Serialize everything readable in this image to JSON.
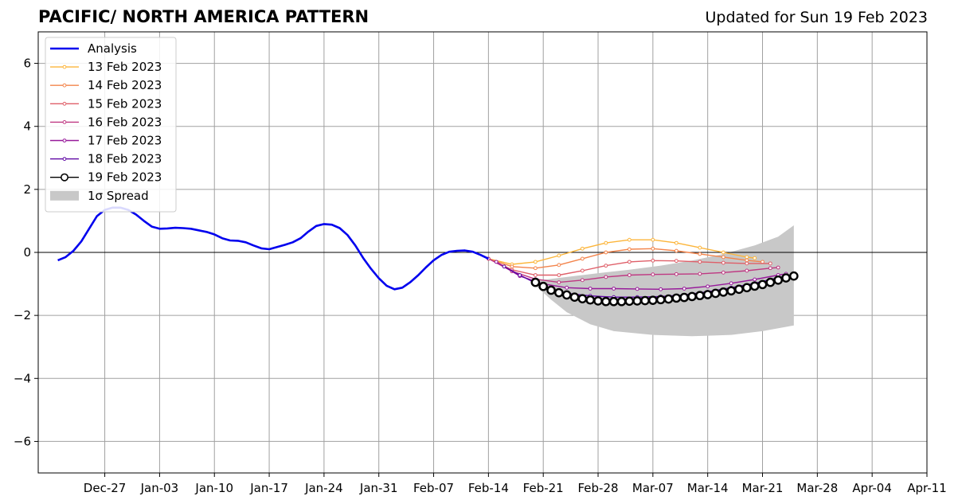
{
  "header": {
    "title": "PACIFIC/ NORTH AMERICA PATTERN",
    "updated": "Updated for Sun 19 Feb 2023"
  },
  "chart_data": {
    "type": "line",
    "title": "PACIFIC/ NORTH AMERICA PATTERN",
    "subtitle": "Updated for Sun 19 Feb 2023",
    "xlabel": "",
    "ylabel": "",
    "x_unit": "days since Dec 27 2022",
    "xlim": [
      -8.5,
      105
    ],
    "ylim": [
      -7,
      7
    ],
    "x_ticks": [
      {
        "x": 0,
        "label": "Dec-27"
      },
      {
        "x": 7,
        "label": "Jan-03"
      },
      {
        "x": 14,
        "label": "Jan-10"
      },
      {
        "x": 21,
        "label": "Jan-17"
      },
      {
        "x": 28,
        "label": "Jan-24"
      },
      {
        "x": 35,
        "label": "Jan-31"
      },
      {
        "x": 42,
        "label": "Feb-07"
      },
      {
        "x": 49,
        "label": "Feb-14"
      },
      {
        "x": 56,
        "label": "Feb-21"
      },
      {
        "x": 63,
        "label": "Feb-28"
      },
      {
        "x": 70,
        "label": "Mar-07"
      },
      {
        "x": 77,
        "label": "Mar-14"
      },
      {
        "x": 84,
        "label": "Mar-21"
      },
      {
        "x": 91,
        "label": "Mar-28"
      },
      {
        "x": 98,
        "label": "Apr-04"
      },
      {
        "x": 105,
        "label": "Apr-11"
      }
    ],
    "y_ticks": [
      {
        "y": 6,
        "label": "6"
      },
      {
        "y": 4,
        "label": "4"
      },
      {
        "y": 2,
        "label": "2"
      },
      {
        "y": 0,
        "label": "0"
      },
      {
        "y": -2,
        "label": "−2"
      },
      {
        "y": -4,
        "label": "−4"
      },
      {
        "y": -6,
        "label": "−6"
      }
    ],
    "grid": true,
    "legend_position": "top-left",
    "legend": [
      {
        "label": "Analysis",
        "kind": "line",
        "color": "#0000ee"
      },
      {
        "label": "13 Feb 2023",
        "kind": "dotline",
        "color": "#fcb53a"
      },
      {
        "label": "14 Feb 2023",
        "kind": "dotline",
        "color": "#f3844b"
      },
      {
        "label": "15 Feb 2023",
        "kind": "dotline",
        "color": "#df5f69"
      },
      {
        "label": "16 Feb 2023",
        "kind": "dotline",
        "color": "#bf3882"
      },
      {
        "label": "17 Feb 2023",
        "kind": "dotline",
        "color": "#97199a"
      },
      {
        "label": "18 Feb 2023",
        "kind": "dotline",
        "color": "#5d05a3"
      },
      {
        "label": "19 Feb 2023",
        "kind": "circleline",
        "color": "#000000"
      },
      {
        "label": "1σ Spread",
        "kind": "patch",
        "color": "#c8c8c8"
      }
    ],
    "series": [
      {
        "name": "Analysis",
        "color": "#0000ee",
        "points": [
          [
            -6,
            -0.25
          ],
          [
            -5,
            -0.15
          ],
          [
            -4,
            0.05
          ],
          [
            -3,
            0.35
          ],
          [
            -2,
            0.75
          ],
          [
            -1,
            1.15
          ],
          [
            0,
            1.35
          ],
          [
            1,
            1.42
          ],
          [
            2,
            1.42
          ],
          [
            3,
            1.35
          ],
          [
            4,
            1.2
          ],
          [
            5,
            1.0
          ],
          [
            6,
            0.82
          ],
          [
            7,
            0.75
          ],
          [
            8,
            0.76
          ],
          [
            9,
            0.78
          ],
          [
            10,
            0.77
          ],
          [
            11,
            0.75
          ],
          [
            12,
            0.7
          ],
          [
            13,
            0.65
          ],
          [
            14,
            0.57
          ],
          [
            15,
            0.45
          ],
          [
            16,
            0.38
          ],
          [
            17,
            0.37
          ],
          [
            18,
            0.32
          ],
          [
            19,
            0.22
          ],
          [
            20,
            0.13
          ],
          [
            21,
            0.1
          ],
          [
            22,
            0.17
          ],
          [
            23,
            0.24
          ],
          [
            24,
            0.32
          ],
          [
            25,
            0.45
          ],
          [
            26,
            0.66
          ],
          [
            27,
            0.84
          ],
          [
            28,
            0.9
          ],
          [
            29,
            0.88
          ],
          [
            30,
            0.77
          ],
          [
            31,
            0.55
          ],
          [
            32,
            0.22
          ],
          [
            33,
            -0.18
          ],
          [
            34,
            -0.52
          ],
          [
            35,
            -0.82
          ],
          [
            36,
            -1.06
          ],
          [
            37,
            -1.17
          ],
          [
            38,
            -1.12
          ],
          [
            39,
            -0.95
          ],
          [
            40,
            -0.73
          ],
          [
            41,
            -0.48
          ],
          [
            42,
            -0.25
          ],
          [
            43,
            -0.08
          ],
          [
            44,
            0.02
          ],
          [
            45,
            0.05
          ],
          [
            46,
            0.06
          ],
          [
            47,
            0.02
          ],
          [
            48,
            -0.08
          ],
          [
            49,
            -0.2
          ]
        ]
      },
      {
        "name": "13 Feb 2023",
        "color": "#fcb53a",
        "points": [
          [
            49,
            -0.2
          ],
          [
            52,
            -0.38
          ],
          [
            55,
            -0.3
          ],
          [
            58,
            -0.1
          ],
          [
            61,
            0.12
          ],
          [
            64,
            0.3
          ],
          [
            67,
            0.4
          ],
          [
            70,
            0.4
          ],
          [
            73,
            0.3
          ],
          [
            76,
            0.15
          ],
          [
            79,
            0.0
          ],
          [
            82,
            -0.15
          ],
          [
            83,
            -0.18
          ]
        ]
      },
      {
        "name": "14 Feb 2023",
        "color": "#f3844b",
        "points": [
          [
            49,
            -0.2
          ],
          [
            52,
            -0.45
          ],
          [
            55,
            -0.5
          ],
          [
            58,
            -0.4
          ],
          [
            61,
            -0.2
          ],
          [
            64,
            0.0
          ],
          [
            67,
            0.1
          ],
          [
            70,
            0.12
          ],
          [
            73,
            0.05
          ],
          [
            76,
            -0.05
          ],
          [
            79,
            -0.15
          ],
          [
            82,
            -0.25
          ],
          [
            84,
            -0.3
          ]
        ]
      },
      {
        "name": "15 Feb 2023",
        "color": "#df5f69",
        "points": [
          [
            49,
            -0.2
          ],
          [
            52,
            -0.55
          ],
          [
            55,
            -0.72
          ],
          [
            58,
            -0.72
          ],
          [
            61,
            -0.58
          ],
          [
            64,
            -0.42
          ],
          [
            67,
            -0.3
          ],
          [
            70,
            -0.26
          ],
          [
            73,
            -0.27
          ],
          [
            76,
            -0.3
          ],
          [
            79,
            -0.33
          ],
          [
            82,
            -0.35
          ],
          [
            85,
            -0.35
          ]
        ]
      },
      {
        "name": "16 Feb 2023",
        "color": "#bf3882",
        "points": [
          [
            49,
            -0.2
          ],
          [
            52,
            -0.6
          ],
          [
            55,
            -0.85
          ],
          [
            58,
            -0.95
          ],
          [
            61,
            -0.88
          ],
          [
            64,
            -0.78
          ],
          [
            67,
            -0.72
          ],
          [
            70,
            -0.7
          ],
          [
            73,
            -0.69
          ],
          [
            76,
            -0.68
          ],
          [
            79,
            -0.64
          ],
          [
            82,
            -0.58
          ],
          [
            85,
            -0.5
          ],
          [
            86,
            -0.48
          ]
        ]
      },
      {
        "name": "17 Feb 2023",
        "color": "#97199a",
        "points": [
          [
            50,
            -0.3
          ],
          [
            53,
            -0.75
          ],
          [
            56,
            -1.0
          ],
          [
            59,
            -1.12
          ],
          [
            62,
            -1.15
          ],
          [
            65,
            -1.15
          ],
          [
            68,
            -1.16
          ],
          [
            71,
            -1.17
          ],
          [
            74,
            -1.15
          ],
          [
            77,
            -1.08
          ],
          [
            80,
            -0.98
          ],
          [
            83,
            -0.86
          ],
          [
            86,
            -0.72
          ],
          [
            87,
            -0.68
          ]
        ]
      },
      {
        "name": "18 Feb 2023",
        "color": "#5d05a3",
        "points": [
          [
            51,
            -0.45
          ],
          [
            53,
            -0.72
          ],
          [
            56,
            -1.1
          ],
          [
            59,
            -1.3
          ],
          [
            62,
            -1.38
          ],
          [
            65,
            -1.42
          ],
          [
            68,
            -1.42
          ],
          [
            71,
            -1.4
          ],
          [
            74,
            -1.35
          ],
          [
            77,
            -1.25
          ],
          [
            80,
            -1.12
          ],
          [
            83,
            -0.98
          ],
          [
            86,
            -0.8
          ],
          [
            88,
            -0.7
          ]
        ]
      }
    ],
    "forecast_19feb": {
      "name": "19 Feb 2023",
      "color": "#000000",
      "points": [
        [
          55,
          -0.95
        ],
        [
          56,
          -1.08
        ],
        [
          57,
          -1.2
        ],
        [
          58,
          -1.28
        ],
        [
          59,
          -1.35
        ],
        [
          60,
          -1.42
        ],
        [
          61,
          -1.47
        ],
        [
          62,
          -1.51
        ],
        [
          63,
          -1.54
        ],
        [
          64,
          -1.56
        ],
        [
          65,
          -1.56
        ],
        [
          66,
          -1.56
        ],
        [
          67,
          -1.55
        ],
        [
          68,
          -1.54
        ],
        [
          69,
          -1.53
        ],
        [
          70,
          -1.52
        ],
        [
          71,
          -1.5
        ],
        [
          72,
          -1.48
        ],
        [
          73,
          -1.45
        ],
        [
          74,
          -1.43
        ],
        [
          75,
          -1.4
        ],
        [
          76,
          -1.37
        ],
        [
          77,
          -1.34
        ],
        [
          78,
          -1.3
        ],
        [
          79,
          -1.26
        ],
        [
          80,
          -1.22
        ],
        [
          81,
          -1.17
        ],
        [
          82,
          -1.12
        ],
        [
          83,
          -1.07
        ],
        [
          84,
          -1.02
        ],
        [
          85,
          -0.95
        ],
        [
          86,
          -0.88
        ],
        [
          87,
          -0.81
        ],
        [
          88,
          -0.75
        ]
      ]
    },
    "spread": {
      "name": "1σ Spread",
      "color": "#c8c8c8",
      "upper": [
        [
          55,
          -0.9
        ],
        [
          59,
          -0.78
        ],
        [
          63,
          -0.66
        ],
        [
          67,
          -0.55
        ],
        [
          71,
          -0.42
        ],
        [
          75,
          -0.26
        ],
        [
          79,
          -0.05
        ],
        [
          83,
          0.22
        ],
        [
          86,
          0.5
        ],
        [
          88,
          0.86
        ]
      ],
      "lower": [
        [
          55,
          -1.05
        ],
        [
          57,
          -1.5
        ],
        [
          59,
          -1.9
        ],
        [
          62,
          -2.28
        ],
        [
          65,
          -2.5
        ],
        [
          70,
          -2.62
        ],
        [
          75,
          -2.66
        ],
        [
          80,
          -2.62
        ],
        [
          84,
          -2.5
        ],
        [
          88,
          -2.32
        ]
      ]
    }
  }
}
